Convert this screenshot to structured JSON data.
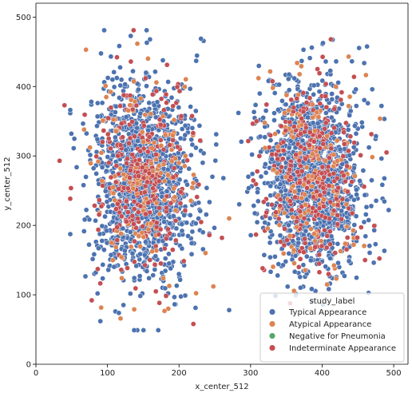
{
  "chart_data": {
    "type": "scatter",
    "xlabel": "x_center_512",
    "ylabel": "y_center_512",
    "xlim": [
      0,
      520
    ],
    "ylim": [
      0,
      520
    ],
    "x_ticks": [
      0,
      100,
      200,
      300,
      400,
      500
    ],
    "y_ticks": [
      0,
      100,
      200,
      300,
      400,
      500
    ],
    "grid": false,
    "legend_position": "bottom-right",
    "legend_title": "study_label",
    "series": [
      {
        "name": "Typical Appearance",
        "color": "#4c72b0",
        "clusters": [
          {
            "center": [
              150,
              265
            ],
            "spread": [
              34,
              72
            ],
            "count": 1400
          },
          {
            "center": [
              385,
              270
            ],
            "spread": [
              34,
              66
            ],
            "count": 1450
          }
        ],
        "points": [
          [
            155,
            463
          ],
          [
            90,
            62
          ],
          [
            270,
            78
          ],
          [
            493,
            222
          ],
          [
            483,
            372
          ],
          [
            470,
            396
          ],
          [
            325,
            408
          ],
          [
            262,
            268
          ]
        ]
      },
      {
        "name": "Atypical Appearance",
        "color": "#dd8452",
        "clusters": [
          {
            "center": [
              150,
              265
            ],
            "spread": [
              36,
              72
            ],
            "count": 150
          },
          {
            "center": [
              385,
              270
            ],
            "spread": [
              36,
              68
            ],
            "count": 150
          }
        ],
        "points": [
          [
            70,
            453
          ],
          [
            437,
            443
          ],
          [
            185,
            80
          ],
          [
            311,
            412
          ],
          [
            270,
            210
          ],
          [
            248,
            112
          ]
        ]
      },
      {
        "name": "Negative for Pneumonia",
        "color": "#55a868",
        "clusters": [],
        "points": []
      },
      {
        "name": "Indeterminate Appearance",
        "color": "#c44e52",
        "clusters": [
          {
            "center": [
              150,
              265
            ],
            "spread": [
              34,
              72
            ],
            "count": 280
          },
          {
            "center": [
              385,
              270
            ],
            "spread": [
              34,
              66
            ],
            "count": 300
          }
        ],
        "points": [
          [
            40,
            373
          ],
          [
            33,
            293
          ],
          [
            490,
            305
          ],
          [
            78,
            92
          ],
          [
            220,
            58
          ],
          [
            260,
            182
          ],
          [
            460,
            150
          ]
        ]
      }
    ]
  }
}
